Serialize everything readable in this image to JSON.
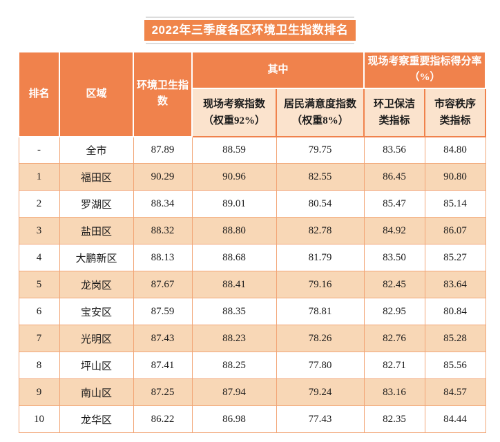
{
  "title": "2022年三季度各区环境卫生指数排名",
  "colors": {
    "orange": "#F0824C",
    "title_bg": "#F0854A",
    "subheader_bg": "#FBE3CD",
    "alt_row_bg": "#F8D7B6",
    "border": "#F2A576",
    "rule_gray": "#DCDCDC",
    "text": "#1A1A1A"
  },
  "table": {
    "headers": {
      "rank": "排名",
      "region": "区域",
      "index": "环境卫生指数",
      "among": "其中",
      "onsite": "现场考察指数（权重92%）",
      "satisfaction": "居民满意度指数（权重8%）",
      "important": "现场考察重要指标得分率（%）",
      "sanitation": "环卫保洁类指标",
      "order": "市容秩序类指标"
    }
  },
  "chart_data": {
    "type": "table",
    "title": "2022年三季度各区环境卫生指数排名",
    "columns": [
      "排名",
      "区域",
      "环境卫生指数",
      "现场考察指数（权重92%）",
      "居民满意度指数（权重8%）",
      "环卫保洁类指标",
      "市容秩序类指标"
    ],
    "column_groups": [
      {
        "label": "其中",
        "columns": [
          "现场考察指数（权重92%）",
          "居民满意度指数（权重8%）"
        ]
      },
      {
        "label": "现场考察重要指标得分率（%）",
        "columns": [
          "环卫保洁类指标",
          "市容秩序类指标"
        ]
      }
    ],
    "rows": [
      [
        "-",
        "全市",
        "87.89",
        "88.59",
        "79.75",
        "83.56",
        "84.80"
      ],
      [
        "1",
        "福田区",
        "90.29",
        "90.96",
        "82.55",
        "86.45",
        "90.80"
      ],
      [
        "2",
        "罗湖区",
        "88.34",
        "89.01",
        "80.54",
        "85.47",
        "85.14"
      ],
      [
        "3",
        "盐田区",
        "88.32",
        "88.80",
        "82.78",
        "84.92",
        "86.07"
      ],
      [
        "4",
        "大鹏新区",
        "88.13",
        "88.68",
        "81.79",
        "83.50",
        "85.27"
      ],
      [
        "5",
        "龙岗区",
        "87.67",
        "88.41",
        "79.16",
        "82.45",
        "83.64"
      ],
      [
        "6",
        "宝安区",
        "87.59",
        "88.35",
        "78.81",
        "82.95",
        "80.84"
      ],
      [
        "7",
        "光明区",
        "87.43",
        "88.23",
        "78.26",
        "82.76",
        "85.28"
      ],
      [
        "8",
        "坪山区",
        "87.41",
        "88.25",
        "77.80",
        "82.71",
        "85.56"
      ],
      [
        "9",
        "南山区",
        "87.25",
        "87.94",
        "79.24",
        "83.16",
        "84.57"
      ],
      [
        "10",
        "龙华区",
        "86.22",
        "86.98",
        "77.43",
        "82.35",
        "84.44"
      ]
    ]
  }
}
